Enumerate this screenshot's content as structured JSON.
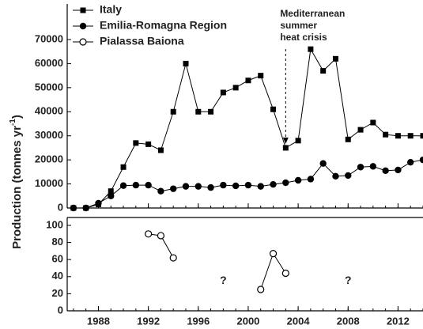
{
  "chart_data": [
    {
      "type": "line",
      "y_label": [
        "Production (tonnes yr",
        "-1",
        ")"
      ],
      "x": [
        1986,
        1987,
        1988,
        1989,
        1990,
        1991,
        1992,
        1993,
        1994,
        1995,
        1996,
        1997,
        1998,
        1999,
        2000,
        2001,
        2002,
        2003,
        2004,
        2005,
        2006,
        2007,
        2008,
        2009,
        2010,
        2011,
        2012,
        2013,
        2014
      ],
      "series": [
        {
          "name": "Italy",
          "color": "#000000",
          "marker": "square",
          "values": [
            0,
            0,
            1500,
            7000,
            17000,
            27000,
            26500,
            24000,
            40000,
            60000,
            40000,
            40000,
            48000,
            50000,
            53000,
            55000,
            41000,
            25000,
            28000,
            66000,
            57000,
            62000,
            28500,
            32500,
            35500,
            30500,
            30000,
            30000,
            30000
          ]
        },
        {
          "name": "Emilia-Romagna Region",
          "color": "#000000",
          "marker": "filled-circle",
          "values": [
            0,
            0,
            2000,
            5000,
            9300,
            9500,
            9500,
            7000,
            8000,
            9000,
            9000,
            8500,
            9500,
            9200,
            9500,
            9000,
            9800,
            10500,
            11500,
            12000,
            18500,
            13200,
            13500,
            17000,
            17300,
            15500,
            15800,
            19000,
            20000
          ]
        }
      ],
      "xlim": [
        1985.5,
        2014
      ],
      "xticks": [
        1988,
        1992,
        1996,
        2000,
        2004,
        2008,
        2012
      ],
      "ylim": [
        0,
        70000
      ],
      "yticks": [
        0,
        10000,
        20000,
        30000,
        40000,
        50000,
        60000,
        70000
      ],
      "annotations": [
        {
          "text": [
            "Mediterranean",
            "summer",
            "heat crisis"
          ],
          "x": 2003,
          "y": 25000
        }
      ]
    },
    {
      "type": "line",
      "x": [
        1992,
        1993,
        1994,
        1995,
        1996,
        1997,
        1998,
        1999,
        2000,
        2001,
        2002,
        2003
      ],
      "series": [
        {
          "name": "Pialassa Baiona",
          "color": "#000000",
          "marker": "open-circle",
          "values": [
            90,
            88,
            62,
            null,
            null,
            null,
            null,
            null,
            null,
            25,
            67,
            44
          ]
        }
      ],
      "xlim": [
        1985.5,
        2014
      ],
      "xticks": [
        1988,
        1992,
        1996,
        2000,
        2004,
        2008,
        2012
      ],
      "ylim": [
        0,
        100
      ],
      "yticks": [
        0,
        20,
        40,
        60,
        80,
        100
      ],
      "annotations": [
        {
          "text": "?",
          "x": 1998,
          "y": 35
        },
        {
          "text": "?",
          "x": 2008,
          "y": 35
        }
      ]
    }
  ]
}
